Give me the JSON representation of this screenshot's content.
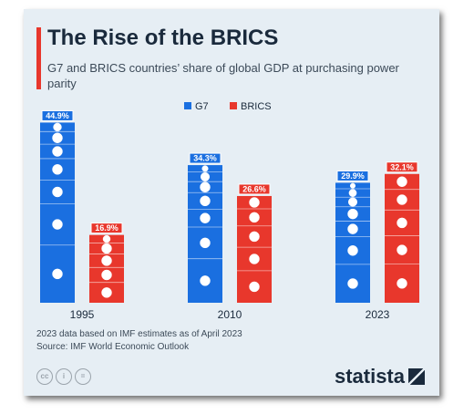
{
  "title": "The Rise of the BRICS",
  "subtitle": "G7 and BRICS countries’ share of global GDP at purchasing power parity",
  "colors": {
    "g7": "#1a6fe0",
    "brics": "#e8372c",
    "accent": "#e8372c",
    "background": "#e6eef4"
  },
  "chart_data": {
    "type": "bar",
    "categories": [
      "1995",
      "2010",
      "2023"
    ],
    "series": [
      {
        "name": "G7",
        "values": [
          44.9,
          34.3,
          29.9
        ],
        "labels": [
          "44.9%",
          "34.3%",
          "29.9%"
        ]
      },
      {
        "name": "BRICS",
        "values": [
          16.9,
          26.6,
          32.1
        ],
        "labels": [
          "16.9%",
          "26.6%",
          "32.1%"
        ]
      }
    ],
    "ylim": [
      0,
      45
    ],
    "grid": false,
    "legend": "top-center",
    "segments": {
      "G7": [
        "us-flag",
        "japan-flag",
        "germany-flag",
        "italy-flag",
        "france-flag",
        "uk-flag",
        "canada-flag"
      ],
      "BRICS": [
        "china-flag",
        "india-flag",
        "russia-flag",
        "brazil-flag",
        "south-africa-flag"
      ]
    }
  },
  "notes": [
    "2023 data based on IMF estimates as of April 2023",
    "Source: IMF World Economic Outlook"
  ],
  "license_icons": [
    "cc-icon",
    "attribution-icon",
    "no-derivatives-icon"
  ],
  "brand": "statista"
}
